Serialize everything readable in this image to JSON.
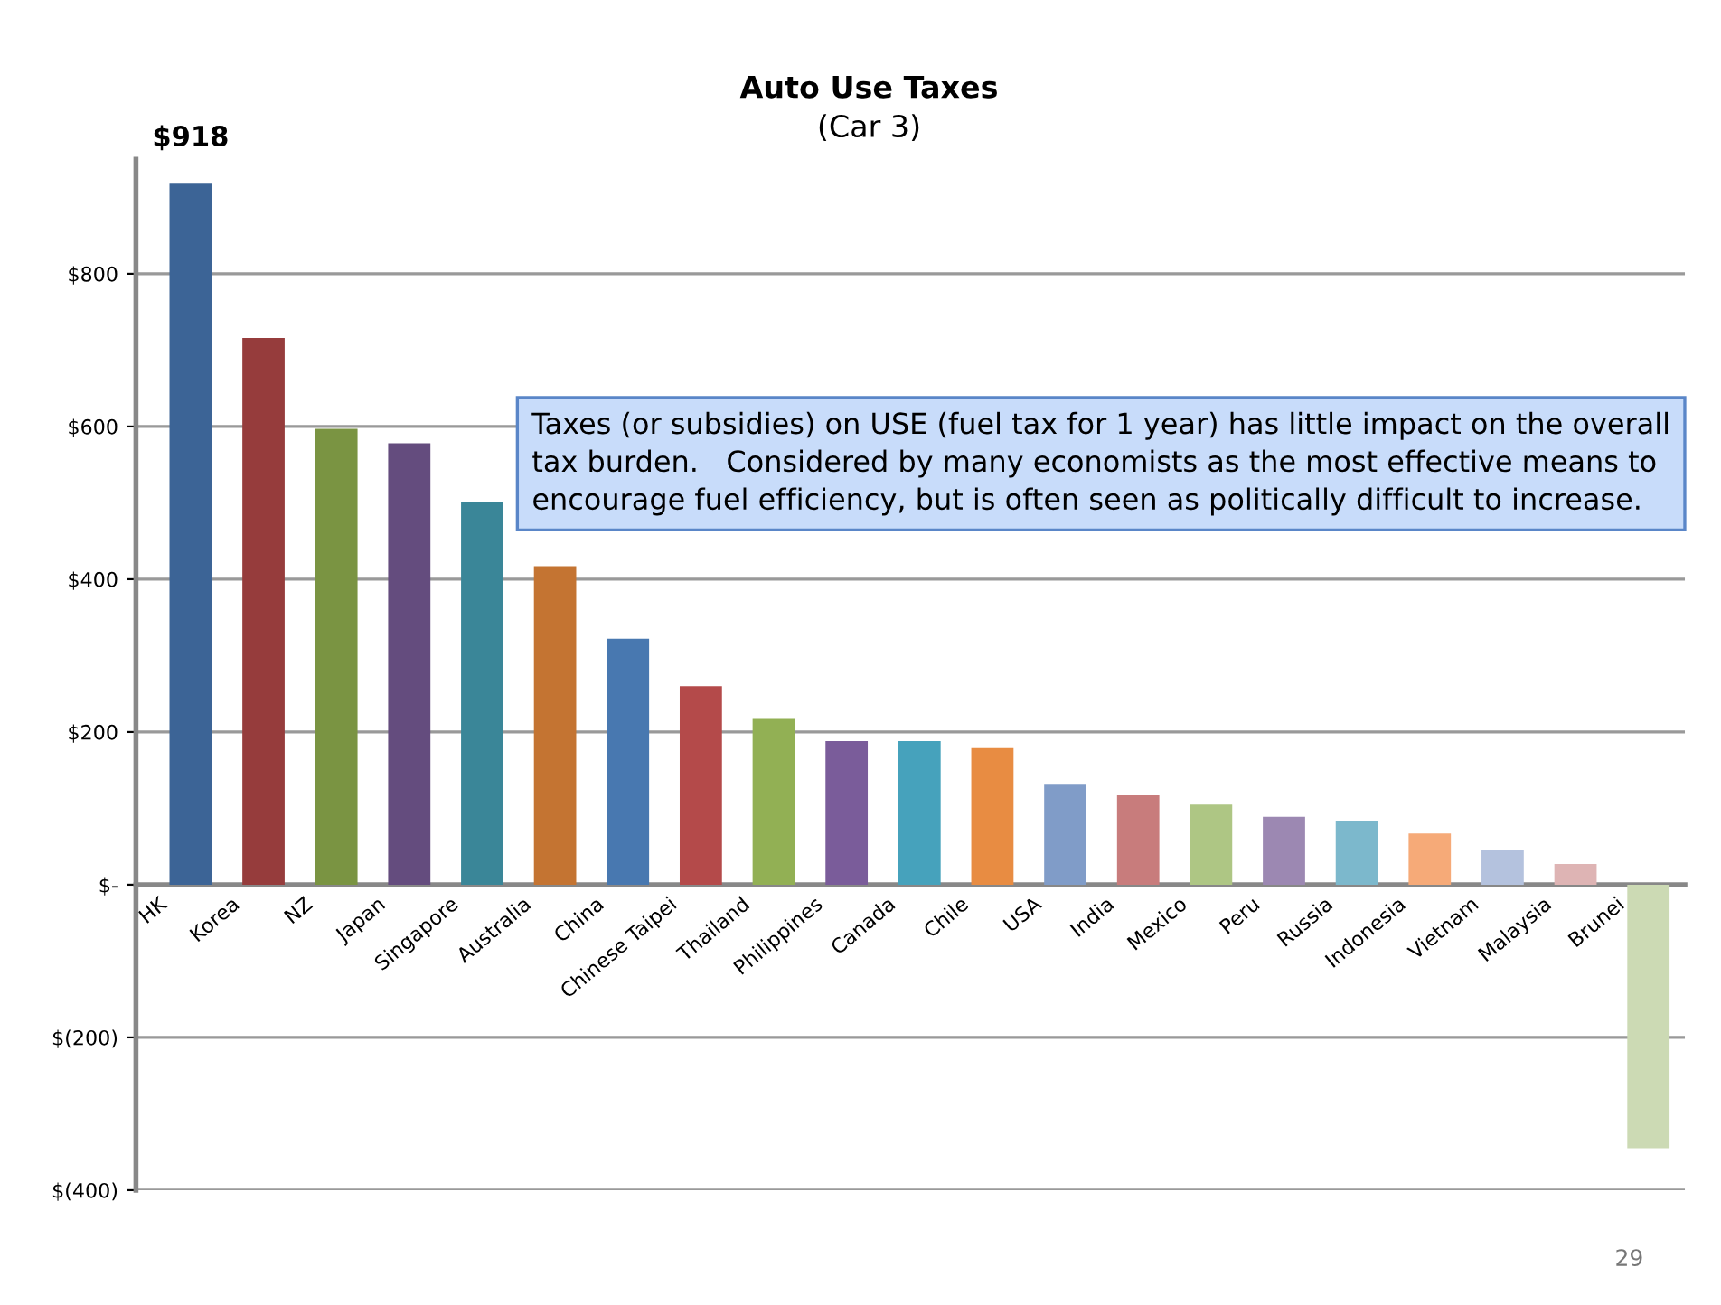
{
  "chart_data": {
    "type": "bar",
    "title": "Auto Use Taxes",
    "subtitle": "(Car 3)",
    "categories": [
      "HK",
      "Korea",
      "NZ",
      "Japan",
      "Singapore",
      "Australia",
      "China",
      "Chinese Taipei",
      "Thailand",
      "Philippines",
      "Canada",
      "Chile",
      "USA",
      "India",
      "Mexico",
      "Peru",
      "Russia",
      "Indonesia",
      "Vietnam",
      "Malaysia",
      "Brunei"
    ],
    "values": [
      918,
      716,
      597,
      578,
      501,
      417,
      322,
      260,
      217,
      188,
      188,
      179,
      131,
      117,
      105,
      89,
      84,
      67,
      46,
      27,
      -345
    ],
    "colors": [
      "#3c6496",
      "#963c3c",
      "#7a9442",
      "#644c7e",
      "#3a8698",
      "#c47432",
      "#4878b0",
      "#b44a4a",
      "#92b054",
      "#7a5c9a",
      "#46a2bc",
      "#e88c42",
      "#809cc8",
      "#c87c7c",
      "#aec684",
      "#9c88b2",
      "#7cb8cc",
      "#f6aa78",
      "#b4c2de",
      "#deb4b4",
      "#ccdab4"
    ],
    "value_labels": [
      "$918",
      null,
      null,
      null,
      null,
      null,
      null,
      null,
      null,
      null,
      null,
      null,
      null,
      null,
      null,
      null,
      null,
      null,
      null,
      null,
      null
    ],
    "ylim": [
      -400,
      950
    ],
    "yticks": [
      {
        "value": -400,
        "label": "$(400)"
      },
      {
        "value": -200,
        "label": "$(200)"
      },
      {
        "value": 0,
        "label": "$-"
      },
      {
        "value": 200,
        "label": "$200"
      },
      {
        "value": 400,
        "label": "$400"
      },
      {
        "value": 600,
        "label": "$600"
      },
      {
        "value": 800,
        "label": "$800"
      }
    ],
    "grid": "y",
    "legend": false,
    "annotations": [
      "Taxes (or subsidies) on USE (fuel tax for 1 year) has little impact on the overall tax burden.   Considered by many economists as the most effective means to encourage fuel efficiency, but is often seen as politically difficult to increase.",
      "29"
    ]
  }
}
